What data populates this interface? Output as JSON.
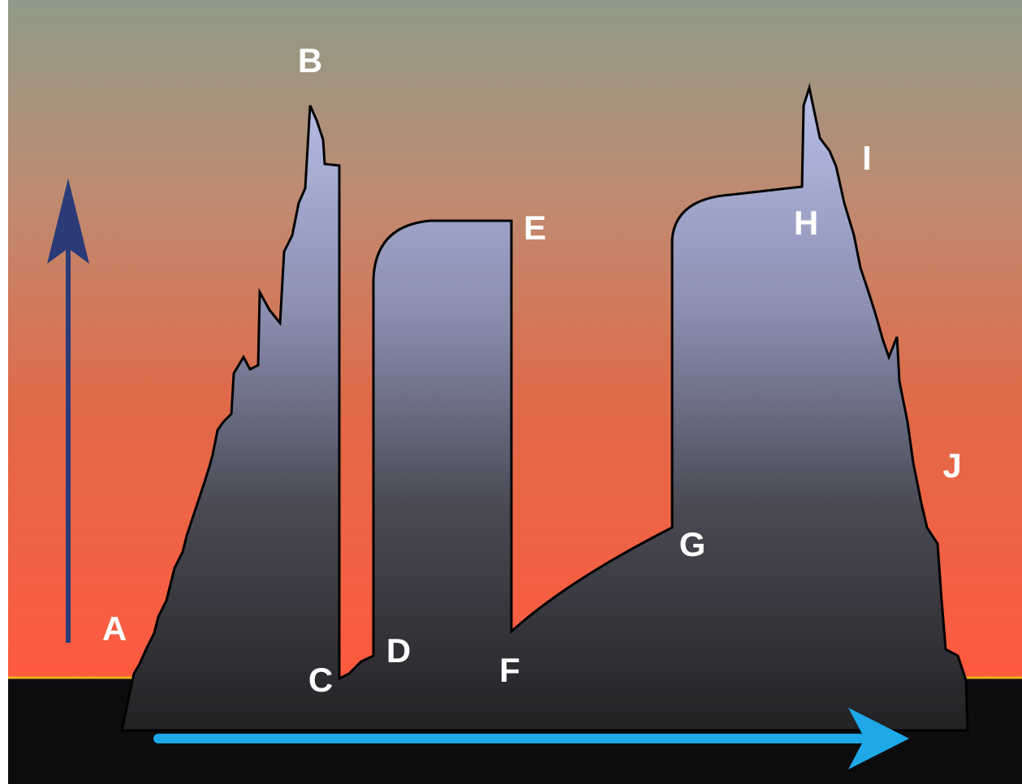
{
  "labels": {
    "a": "A",
    "b": "B",
    "c": "C",
    "d": "D",
    "e": "E",
    "f": "F",
    "g": "G",
    "h": "H",
    "i": "I",
    "j": "J"
  }
}
